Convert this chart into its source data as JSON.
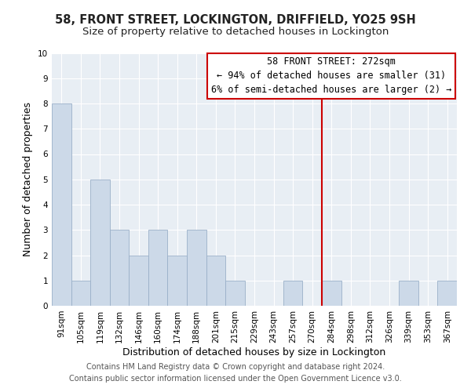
{
  "title": "58, FRONT STREET, LOCKINGTON, DRIFFIELD, YO25 9SH",
  "subtitle": "Size of property relative to detached houses in Lockington",
  "xlabel": "Distribution of detached houses by size in Lockington",
  "ylabel": "Number of detached properties",
  "bin_labels": [
    "91sqm",
    "105sqm",
    "119sqm",
    "132sqm",
    "146sqm",
    "160sqm",
    "174sqm",
    "188sqm",
    "201sqm",
    "215sqm",
    "229sqm",
    "243sqm",
    "257sqm",
    "270sqm",
    "284sqm",
    "298sqm",
    "312sqm",
    "326sqm",
    "339sqm",
    "353sqm",
    "367sqm"
  ],
  "bar_heights": [
    8,
    1,
    5,
    3,
    2,
    3,
    2,
    3,
    2,
    1,
    0,
    0,
    1,
    0,
    1,
    0,
    0,
    0,
    1,
    0,
    1
  ],
  "bar_color": "#ccd9e8",
  "bar_edge_color": "#9ab0c8",
  "subject_line_color": "#cc0000",
  "ylim": [
    0,
    10
  ],
  "yticks": [
    0,
    1,
    2,
    3,
    4,
    5,
    6,
    7,
    8,
    9,
    10
  ],
  "annotation_title": "58 FRONT STREET: 272sqm",
  "annotation_line1": "← 94% of detached houses are smaller (31)",
  "annotation_line2": "6% of semi-detached houses are larger (2) →",
  "annotation_box_color": "#ffffff",
  "annotation_box_edge_color": "#cc0000",
  "footer_line1": "Contains HM Land Registry data © Crown copyright and database right 2024.",
  "footer_line2": "Contains public sector information licensed under the Open Government Licence v3.0.",
  "title_fontsize": 10.5,
  "subtitle_fontsize": 9.5,
  "axis_label_fontsize": 9,
  "tick_fontsize": 7.5,
  "annotation_fontsize": 8.5,
  "footer_fontsize": 7,
  "bg_color": "#e8eef4"
}
